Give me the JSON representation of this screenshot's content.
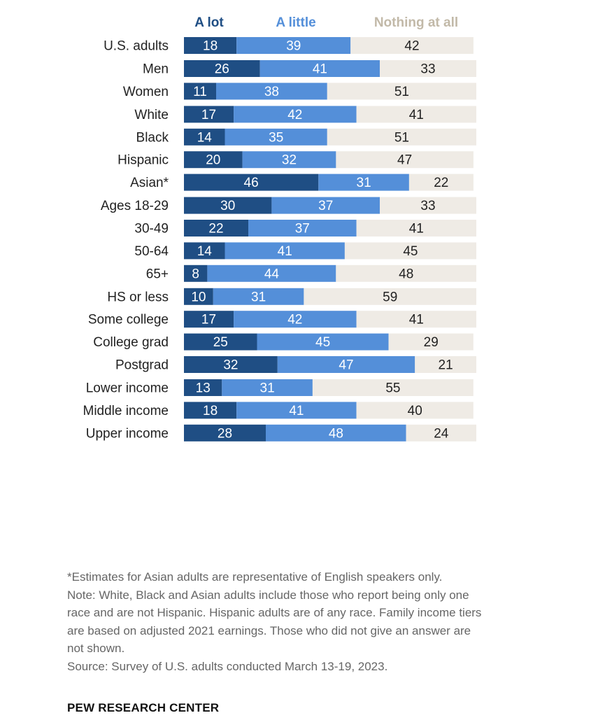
{
  "chart_data": {
    "type": "bar",
    "orientation": "horizontal",
    "stacked": true,
    "legend_placement": "top",
    "grid": false,
    "xlim": [
      0,
      100
    ],
    "categories": [
      "U.S. adults",
      "Men",
      "Women",
      "White",
      "Black",
      "Hispanic",
      "Asian*",
      "Ages 18-29",
      "30-49",
      "50-64",
      "65+",
      "HS or less",
      "Some college",
      "College grad",
      "Postgrad",
      "Lower income",
      "Middle income",
      "Upper income"
    ],
    "groups": [
      1,
      2,
      4,
      4,
      4,
      3
    ],
    "series": [
      {
        "name": "A lot",
        "color": "#1f4e84",
        "label_color": "#ffffff",
        "values": [
          18,
          26,
          11,
          17,
          14,
          20,
          46,
          30,
          22,
          14,
          8,
          10,
          17,
          25,
          32,
          13,
          18,
          28
        ]
      },
      {
        "name": "A little",
        "color": "#548fd9",
        "label_color": "#ffffff",
        "values": [
          39,
          41,
          38,
          42,
          35,
          32,
          31,
          37,
          37,
          41,
          44,
          31,
          42,
          45,
          47,
          31,
          41,
          48
        ]
      },
      {
        "name": "Nothing at all",
        "color": "#efebe5",
        "label_color": "#222222",
        "legend_color": "#c2b9a8",
        "values": [
          42,
          33,
          51,
          41,
          51,
          47,
          22,
          33,
          41,
          45,
          48,
          59,
          41,
          29,
          21,
          55,
          40,
          24
        ]
      }
    ]
  },
  "notes": {
    "asterisk_note": "*Estimates for Asian adults are representative of English speakers only.",
    "note": "Note: White, Black and Asian adults include those who report being only one race and are not Hispanic. Hispanic adults are of any race. Family income tiers are based on adjusted 2021 earnings. Those who did not give an answer are not shown.",
    "source": "Source: Survey of U.S. adults conducted March 13-19, 2023."
  },
  "credit": "PEW RESEARCH CENTER"
}
